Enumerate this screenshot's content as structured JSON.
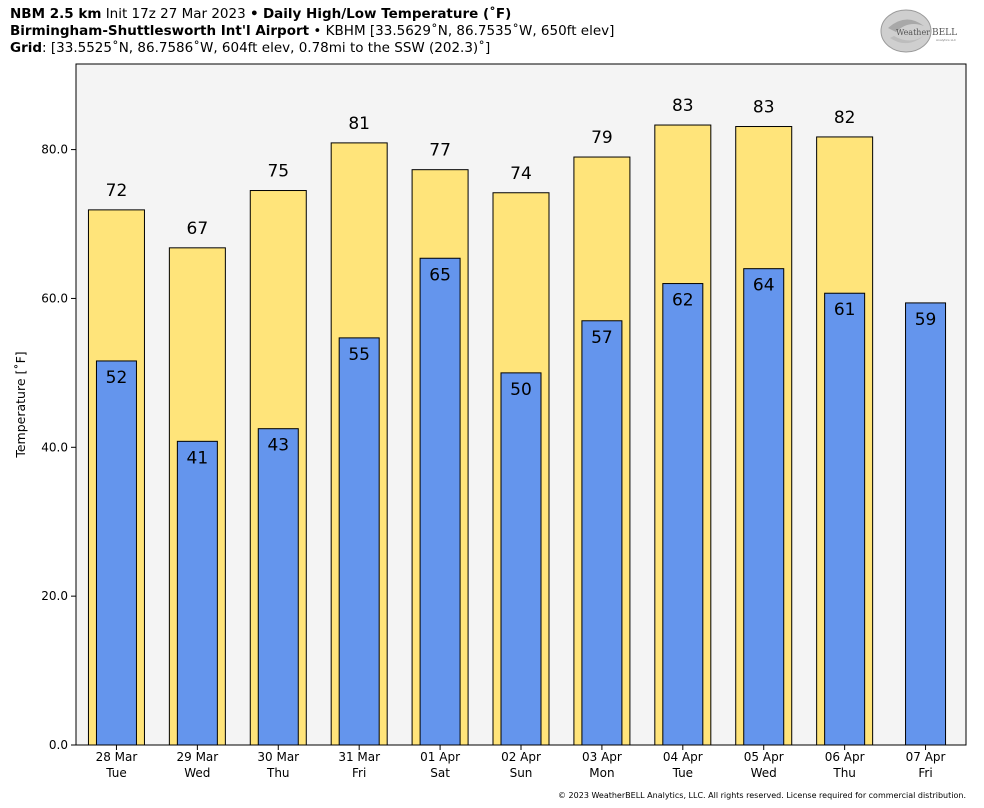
{
  "header": {
    "line1_model": "NBM 2.5 km",
    "line1_init": "Init 17z 27 Mar 2023",
    "line1_sep": "•",
    "line1_product": "Daily High/Low Temperature (˚F)",
    "line2_station": "Birmingham-Shuttlesworth Int'l Airport",
    "line2_sep": "•",
    "line2_details": "KBHM [33.5629˚N, 86.7535˚W, 650ft elev]",
    "line3_label": "Grid",
    "line3_details": ": [33.5525˚N, 86.7586˚W, 604ft elev, 0.78mi to the SSW (202.3)˚]"
  },
  "logo": {
    "text_weather": "Weather",
    "text_bell": "BELL",
    "sub": "Analytics LLC"
  },
  "copyright": "© 2023 WeatherBELL Analytics, LLC. All rights reserved. License required for commercial distribution.",
  "chart_data": {
    "type": "bar",
    "ylabel": "Temperature [˚F]",
    "ylim": [
      0,
      91.5
    ],
    "yticks": [
      0,
      20,
      40,
      60,
      80
    ],
    "ytick_labels": [
      "0.0",
      "20.0",
      "40.0",
      "60.0",
      "80.0"
    ],
    "grid": false,
    "categories": [
      {
        "date": "28 Mar",
        "day": "Tue"
      },
      {
        "date": "29 Mar",
        "day": "Wed"
      },
      {
        "date": "30 Mar",
        "day": "Thu"
      },
      {
        "date": "31 Mar",
        "day": "Fri"
      },
      {
        "date": "01 Apr",
        "day": "Sat"
      },
      {
        "date": "02 Apr",
        "day": "Sun"
      },
      {
        "date": "03 Apr",
        "day": "Mon"
      },
      {
        "date": "04 Apr",
        "day": "Tue"
      },
      {
        "date": "05 Apr",
        "day": "Wed"
      },
      {
        "date": "06 Apr",
        "day": "Thu"
      },
      {
        "date": "07 Apr",
        "day": "Fri"
      }
    ],
    "series": [
      {
        "color": "#FFE47A",
        "values": [
          71.9,
          66.8,
          74.5,
          80.9,
          77.3,
          74.2,
          79.0,
          83.3,
          83.1,
          81.7,
          null
        ],
        "labels": [
          "72",
          "67",
          "75",
          "81",
          "77",
          "74",
          "79",
          "83",
          "83",
          "82",
          ""
        ]
      },
      {
        "color": "#6495ED",
        "values": [
          51.6,
          40.8,
          42.5,
          54.7,
          65.4,
          50.0,
          57.0,
          62.0,
          64.0,
          60.7,
          59.4
        ],
        "labels": [
          "52",
          "41",
          "43",
          "55",
          "65",
          "50",
          "57",
          "62",
          "64",
          "61",
          "59"
        ]
      }
    ],
    "plot_bg": "#F4F4F4"
  }
}
